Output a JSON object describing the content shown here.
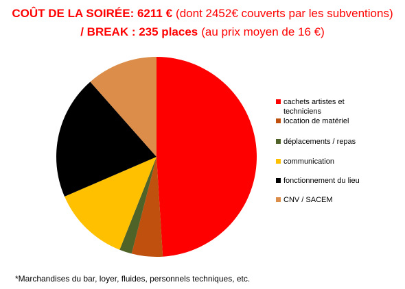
{
  "chart_data": {
    "type": "pie",
    "title": [
      [
        "COÛT DE LA SOIRÉE: 6211 €",
        "(dont 2452€ couverts par les subventions)"
      ],
      [
        "/ BREAK : 235 places",
        "(au prix moyen de 16 €)"
      ]
    ],
    "categories": [
      "cachets artistes et techniciens",
      "location de matériel",
      "déplacements / repas",
      "communication",
      "fonctionnement du lieu",
      "CNV / SACEM"
    ],
    "values": [
      49,
      5,
      2,
      12.5,
      20,
      11.5
    ],
    "colors": [
      "#ff0000",
      "#c0500e",
      "#4f6228",
      "#ffc000",
      "#000000",
      "#dc8d49"
    ],
    "legend": "right",
    "footnote": "*Marchandises du bar, loyer, fluides, personnels techniques, etc."
  }
}
